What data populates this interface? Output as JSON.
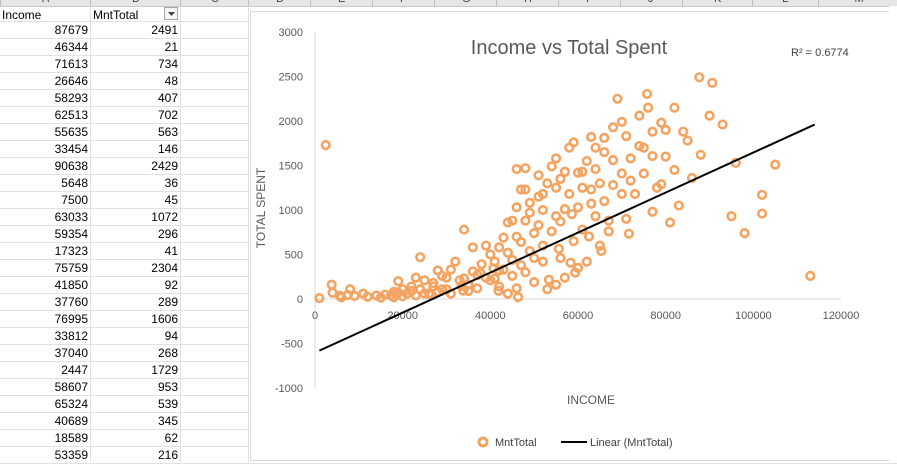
{
  "spreadsheet": {
    "column_letters": [
      "A",
      "B",
      "C",
      "D",
      "E",
      "F",
      "G",
      "H",
      "I",
      "J",
      "K",
      "L",
      "M"
    ],
    "headers": {
      "col_a": "Income",
      "col_b": "MntTotal"
    },
    "rows": [
      {
        "income": "87679",
        "total": "2491"
      },
      {
        "income": "46344",
        "total": "21"
      },
      {
        "income": "71613",
        "total": "734"
      },
      {
        "income": "26646",
        "total": "48"
      },
      {
        "income": "58293",
        "total": "407"
      },
      {
        "income": "62513",
        "total": "702"
      },
      {
        "income": "55635",
        "total": "563"
      },
      {
        "income": "33454",
        "total": "146"
      },
      {
        "income": "90638",
        "total": "2429"
      },
      {
        "income": "5648",
        "total": "36"
      },
      {
        "income": "7500",
        "total": "45"
      },
      {
        "income": "63033",
        "total": "1072"
      },
      {
        "income": "59354",
        "total": "296"
      },
      {
        "income": "17323",
        "total": "41"
      },
      {
        "income": "75759",
        "total": "2304"
      },
      {
        "income": "41850",
        "total": "92"
      },
      {
        "income": "37760",
        "total": "289"
      },
      {
        "income": "76995",
        "total": "1606"
      },
      {
        "income": "33812",
        "total": "94"
      },
      {
        "income": "37040",
        "total": "268"
      },
      {
        "income": "2447",
        "total": "1729"
      },
      {
        "income": "58607",
        "total": "953"
      },
      {
        "income": "65324",
        "total": "539"
      },
      {
        "income": "40689",
        "total": "345"
      },
      {
        "income": "18589",
        "total": "62"
      },
      {
        "income": "53359",
        "total": "216"
      }
    ]
  },
  "chart_data": {
    "type": "scatter",
    "title": "Income vs Total Spent",
    "xlabel": "INCOME",
    "ylabel": "TOTAL SPENT",
    "xlim": [
      0,
      120000
    ],
    "ylim": [
      -1000,
      3000
    ],
    "x_ticks": [
      "0",
      "20000",
      "40000",
      "60000",
      "80000",
      "100000",
      "120000"
    ],
    "y_ticks": [
      "3000",
      "2500",
      "2000",
      "1500",
      "1000",
      "500",
      "0",
      "-500",
      "-1000"
    ],
    "r_squared_label": "R² = 0.6774",
    "series": [
      {
        "name": "MntTotal",
        "color": "#f4a460",
        "points": [
          [
            87679,
            2491
          ],
          [
            46344,
            21
          ],
          [
            71613,
            734
          ],
          [
            26646,
            48
          ],
          [
            58293,
            407
          ],
          [
            62513,
            702
          ],
          [
            55635,
            563
          ],
          [
            33454,
            146
          ],
          [
            90638,
            2429
          ],
          [
            5648,
            36
          ],
          [
            7500,
            45
          ],
          [
            63033,
            1072
          ],
          [
            59354,
            296
          ],
          [
            17323,
            41
          ],
          [
            75759,
            2304
          ],
          [
            41850,
            92
          ],
          [
            37760,
            289
          ],
          [
            76995,
            1606
          ],
          [
            33812,
            94
          ],
          [
            37040,
            268
          ],
          [
            2447,
            1729
          ],
          [
            58607,
            953
          ],
          [
            65324,
            539
          ],
          [
            40689,
            345
          ],
          [
            18589,
            62
          ],
          [
            53359,
            216
          ],
          [
            113000,
            260
          ],
          [
            105000,
            1510
          ],
          [
            102000,
            1170
          ],
          [
            102000,
            960
          ],
          [
            98000,
            740
          ],
          [
            96000,
            1530
          ],
          [
            95000,
            930
          ],
          [
            93000,
            1960
          ],
          [
            90000,
            2060
          ],
          [
            88000,
            1620
          ],
          [
            85000,
            1780
          ],
          [
            82000,
            1450
          ],
          [
            80000,
            1900
          ],
          [
            78000,
            1250
          ],
          [
            76000,
            2150
          ],
          [
            74000,
            1720
          ],
          [
            72000,
            1330
          ],
          [
            70000,
            1990
          ],
          [
            69000,
            2250
          ],
          [
            68000,
            1560
          ],
          [
            66000,
            1100
          ],
          [
            64000,
            1460
          ],
          [
            63000,
            1820
          ],
          [
            61000,
            1250
          ],
          [
            60000,
            1030
          ],
          [
            58000,
            1700
          ],
          [
            57000,
            1430
          ],
          [
            56000,
            870
          ],
          [
            55000,
            1250
          ],
          [
            54000,
            1490
          ],
          [
            52000,
            1000
          ],
          [
            51000,
            1150
          ],
          [
            50000,
            740
          ],
          [
            49000,
            970
          ],
          [
            48000,
            1230
          ],
          [
            47000,
            640
          ],
          [
            46000,
            1030
          ],
          [
            45000,
            880
          ],
          [
            44000,
            520
          ],
          [
            43000,
            690
          ],
          [
            42000,
            320
          ],
          [
            40000,
            500
          ],
          [
            39000,
            240
          ],
          [
            38000,
            390
          ],
          [
            36000,
            580
          ],
          [
            35000,
            160
          ],
          [
            34000,
            780
          ],
          [
            33000,
            210
          ],
          [
            31000,
            330
          ],
          [
            30000,
            110
          ],
          [
            29000,
            260
          ],
          [
            28000,
            80
          ],
          [
            27000,
            180
          ],
          [
            25000,
            60
          ],
          [
            24000,
            470
          ],
          [
            23000,
            40
          ],
          [
            22000,
            90
          ],
          [
            20000,
            30
          ],
          [
            19000,
            70
          ],
          [
            18000,
            20
          ],
          [
            16000,
            50
          ],
          [
            15000,
            15
          ],
          [
            14000,
            40
          ],
          [
            12000,
            25
          ],
          [
            11000,
            60
          ],
          [
            9000,
            35
          ],
          [
            8000,
            110
          ],
          [
            6000,
            20
          ],
          [
            4000,
            70
          ],
          [
            1000,
            10
          ],
          [
            3800,
            160
          ],
          [
            67000,
            880
          ],
          [
            65000,
            600
          ],
          [
            62000,
            420
          ],
          [
            60000,
            350
          ],
          [
            57000,
            240
          ],
          [
            55000,
            160
          ],
          [
            53000,
            110
          ],
          [
            52000,
            420
          ],
          [
            50000,
            190
          ],
          [
            48000,
            300
          ],
          [
            46000,
            120
          ],
          [
            45000,
            260
          ],
          [
            44000,
            60
          ],
          [
            42000,
            140
          ],
          [
            41000,
            420
          ],
          [
            40000,
            210
          ],
          [
            39000,
            600
          ],
          [
            37000,
            120
          ],
          [
            36000,
            310
          ],
          [
            35000,
            90
          ],
          [
            34000,
            230
          ],
          [
            32000,
            420
          ],
          [
            31000,
            60
          ],
          [
            30000,
            240
          ],
          [
            29000,
            110
          ],
          [
            28000,
            320
          ],
          [
            27000,
            140
          ],
          [
            26000,
            60
          ],
          [
            25000,
            210
          ],
          [
            24000,
            110
          ],
          [
            23000,
            240
          ],
          [
            22000,
            140
          ],
          [
            21000,
            60
          ],
          [
            20000,
            110
          ],
          [
            19000,
            200
          ],
          [
            18000,
            80
          ],
          [
            83000,
            1050
          ],
          [
            81000,
            860
          ],
          [
            79000,
            1290
          ],
          [
            77000,
            980
          ],
          [
            75000,
            1410
          ],
          [
            73000,
            1180
          ],
          [
            71000,
            900
          ],
          [
            70000,
            1410
          ],
          [
            68000,
            1280
          ],
          [
            67000,
            760
          ],
          [
            66000,
            1650
          ],
          [
            64000,
            930
          ],
          [
            63000,
            1230
          ],
          [
            61000,
            780
          ],
          [
            60000,
            1420
          ],
          [
            59000,
            650
          ],
          [
            58000,
            1180
          ],
          [
            56000,
            460
          ],
          [
            55000,
            930
          ],
          [
            54000,
            760
          ],
          [
            52000,
            600
          ],
          [
            51000,
            830
          ],
          [
            50000,
            460
          ],
          [
            49000,
            540
          ],
          [
            48000,
            880
          ],
          [
            47000,
            380
          ],
          [
            46000,
            700
          ],
          [
            45000,
            440
          ],
          [
            44000,
            860
          ],
          [
            43000,
            330
          ],
          [
            42000,
            580
          ],
          [
            41000,
            230
          ],
          [
            86000,
            1360
          ],
          [
            84000,
            1880
          ],
          [
            82000,
            2150
          ],
          [
            80000,
            1600
          ],
          [
            79000,
            1980
          ],
          [
            77000,
            1880
          ],
          [
            75000,
            1700
          ],
          [
            74000,
            2060
          ],
          [
            72000,
            1580
          ],
          [
            71000,
            1830
          ],
          [
            70000,
            1180
          ],
          [
            68000,
            1930
          ],
          [
            66000,
            1810
          ],
          [
            65000,
            1300
          ],
          [
            64000,
            1700
          ],
          [
            62000,
            1550
          ],
          [
            61000,
            1430
          ],
          [
            59000,
            1760
          ],
          [
            57000,
            1010
          ],
          [
            56000,
            1350
          ],
          [
            55000,
            1580
          ],
          [
            53000,
            1300
          ],
          [
            52000,
            1180
          ],
          [
            51000,
            1390
          ],
          [
            49000,
            1080
          ],
          [
            48000,
            1470
          ],
          [
            47000,
            1230
          ],
          [
            46000,
            1460
          ]
        ]
      },
      {
        "name": "Linear (MntTotal)",
        "color": "#000000",
        "line": [
          [
            1000,
            -580
          ],
          [
            114000,
            1960
          ]
        ]
      }
    ],
    "legend_position": "bottom"
  }
}
